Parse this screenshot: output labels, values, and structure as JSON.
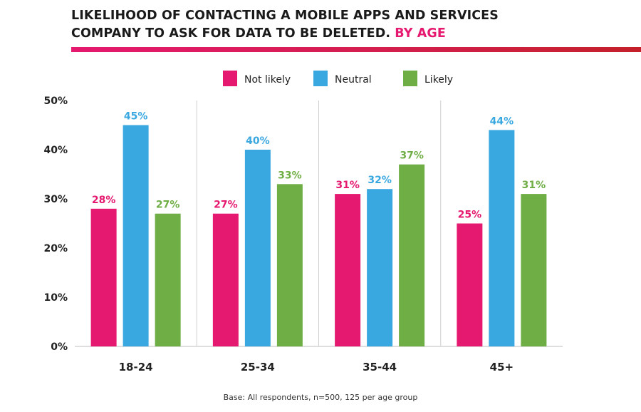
{
  "header": {
    "title_line1": "LIKELIHOOD OF CONTACTING A MOBILE APPS AND SERVICES",
    "title_line2": "COMPANY TO ASK FOR DATA TO BE DELETED.",
    "title_highlight": "BY AGE",
    "highlight_color": "#e5196f"
  },
  "chart_data": {
    "type": "bar",
    "categories": [
      "18-24",
      "25-34",
      "35-44",
      "45+"
    ],
    "series": [
      {
        "name": "Not likely",
        "color": "#e5196f",
        "values": [
          28,
          27,
          31,
          25
        ]
      },
      {
        "name": "Neutral",
        "color": "#3aa8e0",
        "values": [
          45,
          40,
          32,
          44
        ]
      },
      {
        "name": "Likely",
        "color": "#6fae45",
        "values": [
          27,
          33,
          37,
          31
        ]
      }
    ],
    "ylim": [
      0,
      50
    ],
    "yticks": [
      0,
      10,
      20,
      30,
      40,
      50
    ],
    "ytick_labels": [
      "0%",
      "10%",
      "20%",
      "30%",
      "40%",
      "50%"
    ],
    "value_suffix": "%",
    "legend_position": "top-center",
    "grid": false
  },
  "footer": {
    "note": "Base: All respondents, n=500, 125 per age group"
  }
}
